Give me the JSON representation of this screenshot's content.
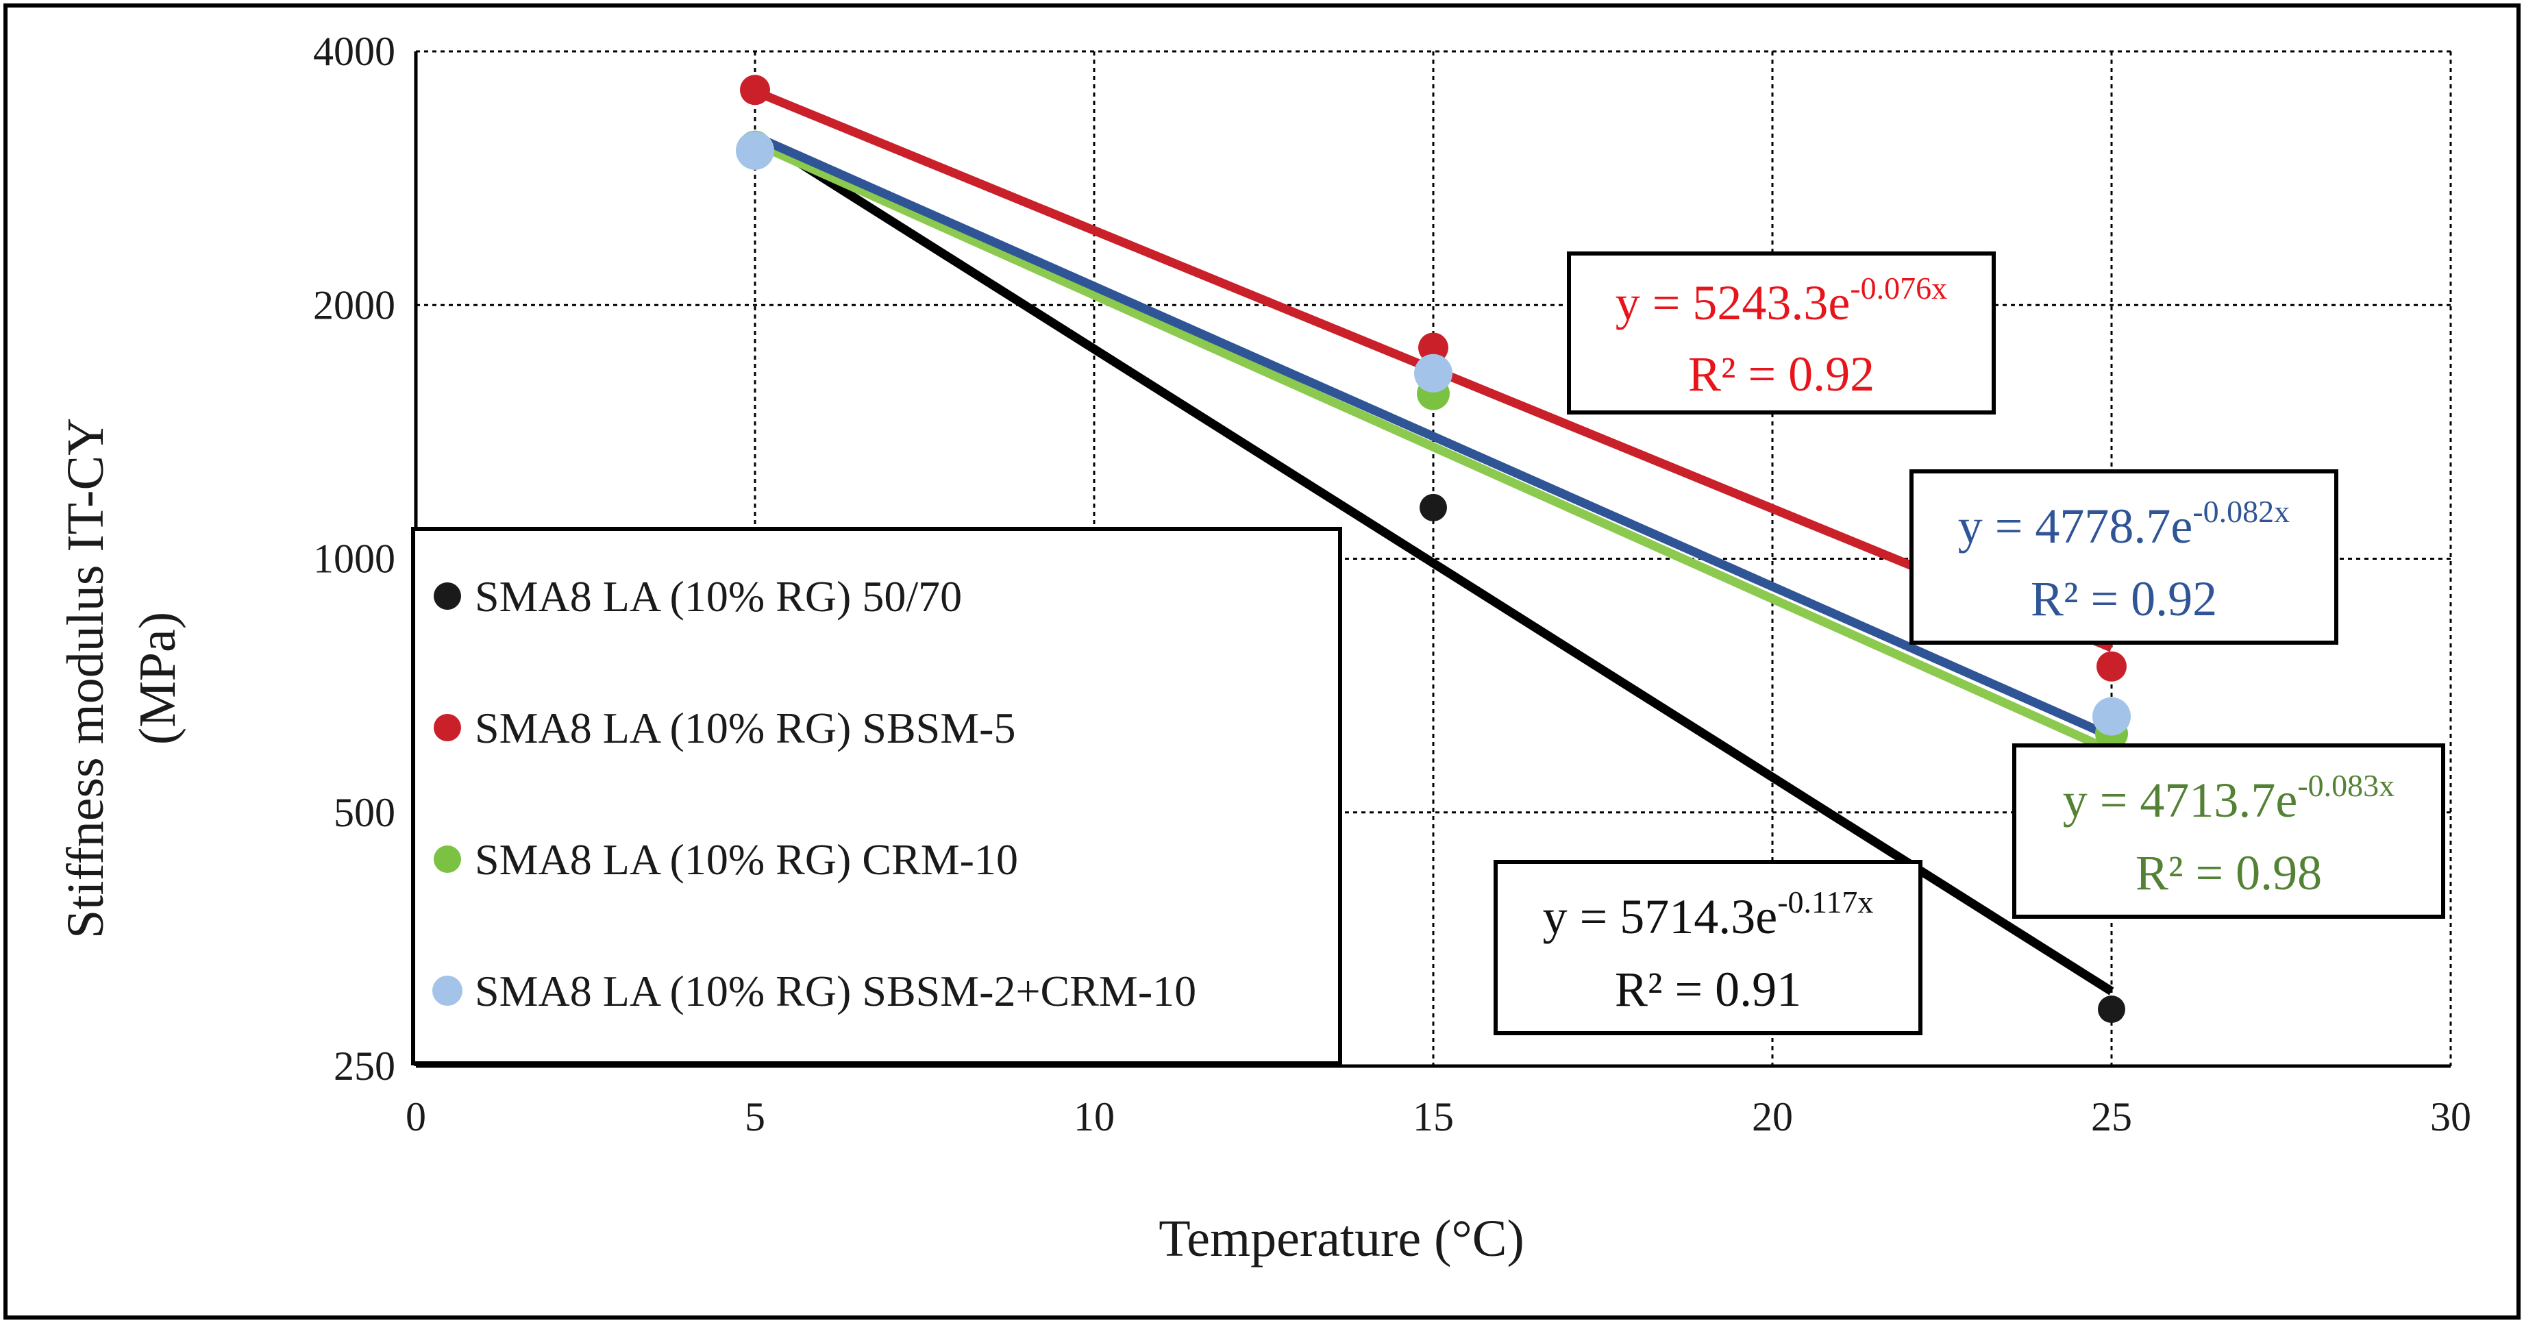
{
  "chart_data": {
    "type": "scatter",
    "xlabel": "Temperature (°C)",
    "ylabel_line1": "Stiffness modulus IT-CY",
    "ylabel_line2": "(MPa)",
    "xlim": [
      0,
      30
    ],
    "ylim": [
      250,
      4000
    ],
    "yscale": "log2",
    "x_ticks": [
      "0",
      "5",
      "10",
      "15",
      "20",
      "25",
      "30"
    ],
    "y_ticks": [
      "250",
      "500",
      "1000",
      "2000",
      "4000"
    ],
    "x_tick_values": [
      0,
      5,
      10,
      15,
      20,
      25,
      30
    ],
    "y_tick_values": [
      250,
      500,
      1000,
      2000,
      4000
    ],
    "grid": true,
    "legend_position": "left",
    "series": [
      {
        "name": "SMA8 LA (10% RG) 50/70",
        "color": "#1a1a1a",
        "x": [
          5,
          15,
          25
        ],
        "y": [
          3030,
          1150,
          292
        ],
        "trend": {
          "a": 5714.3,
          "b": -0.117
        },
        "equation": {
          "prefix": "y = 5714.3e",
          "exponent": "-0.117x",
          "r2": "R² = 0.91"
        }
      },
      {
        "name": "SMA8 LA (10% RG) SBSM-5",
        "color": "#c9202a",
        "x": [
          5,
          15,
          25
        ],
        "y": [
          3600,
          1780,
          745
        ],
        "trend": {
          "a": 5243.3,
          "b": -0.076
        },
        "equation": {
          "prefix": "y = 5243.3e",
          "exponent": "-0.076x",
          "r2": "R² = 0.92"
        }
      },
      {
        "name": "SMA8 LA (10% RG) CRM-10",
        "color": "#7cc242",
        "x": [
          5,
          15,
          25
        ],
        "y": [
          3080,
          1570,
          620
        ],
        "trend": {
          "a": 4713.7,
          "b": -0.083
        },
        "equation": {
          "prefix": "y = 4713.7e",
          "exponent": "-0.083x",
          "r2": "R² = 0.98"
        }
      },
      {
        "name": "SMA8 LA (10% RG) SBSM-2+CRM-10",
        "color": "#a3c4e8",
        "x": [
          5,
          15,
          25
        ],
        "y": [
          3050,
          1660,
          650
        ],
        "trend": {
          "a": 4778.7,
          "b": -0.082
        },
        "equation": {
          "prefix": "y = 4778.7e",
          "exponent": "-0.082x",
          "r2": "R² = 0.92"
        }
      }
    ]
  },
  "colors": {
    "trend_black": "#000000",
    "trend_red": "#c9202a",
    "trend_green": "#8cc94f",
    "trend_blue": "#2f5597",
    "text_red": "#e8141b",
    "text_blue": "#2f5597",
    "text_green": "#548235",
    "text_black": "#111111"
  }
}
